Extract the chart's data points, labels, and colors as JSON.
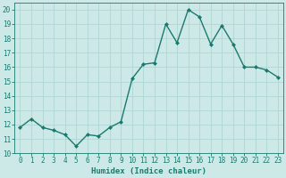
{
  "x": [
    0,
    1,
    2,
    3,
    4,
    5,
    6,
    7,
    8,
    9,
    10,
    11,
    12,
    13,
    14,
    15,
    16,
    17,
    18,
    19,
    20,
    21,
    22,
    23
  ],
  "y": [
    11.8,
    12.4,
    11.8,
    11.6,
    11.3,
    10.5,
    11.3,
    11.2,
    11.8,
    12.2,
    15.2,
    16.2,
    16.3,
    19.0,
    17.7,
    20.0,
    19.5,
    17.6,
    18.9,
    17.6,
    16.0,
    16.0,
    15.8,
    15.3
  ],
  "line_color": "#1a7a6e",
  "marker": "D",
  "marker_size": 2.0,
  "line_width": 1.0,
  "bg_color": "#cde9e7",
  "grid_color": "#b0d5d2",
  "xlabel": "Humidex (Indice chaleur)",
  "xlim": [
    -0.5,
    23.5
  ],
  "ylim": [
    10,
    20.5
  ],
  "yticks": [
    10,
    11,
    12,
    13,
    14,
    15,
    16,
    17,
    18,
    19,
    20
  ],
  "xtick_labels": [
    "0",
    "1",
    "2",
    "3",
    "4",
    "5",
    "6",
    "7",
    "8",
    "9",
    "10",
    "11",
    "12",
    "13",
    "14",
    "15",
    "16",
    "17",
    "18",
    "19",
    "20",
    "21",
    "22",
    "23"
  ],
  "tick_fontsize": 5.5,
  "label_fontsize": 6.5
}
